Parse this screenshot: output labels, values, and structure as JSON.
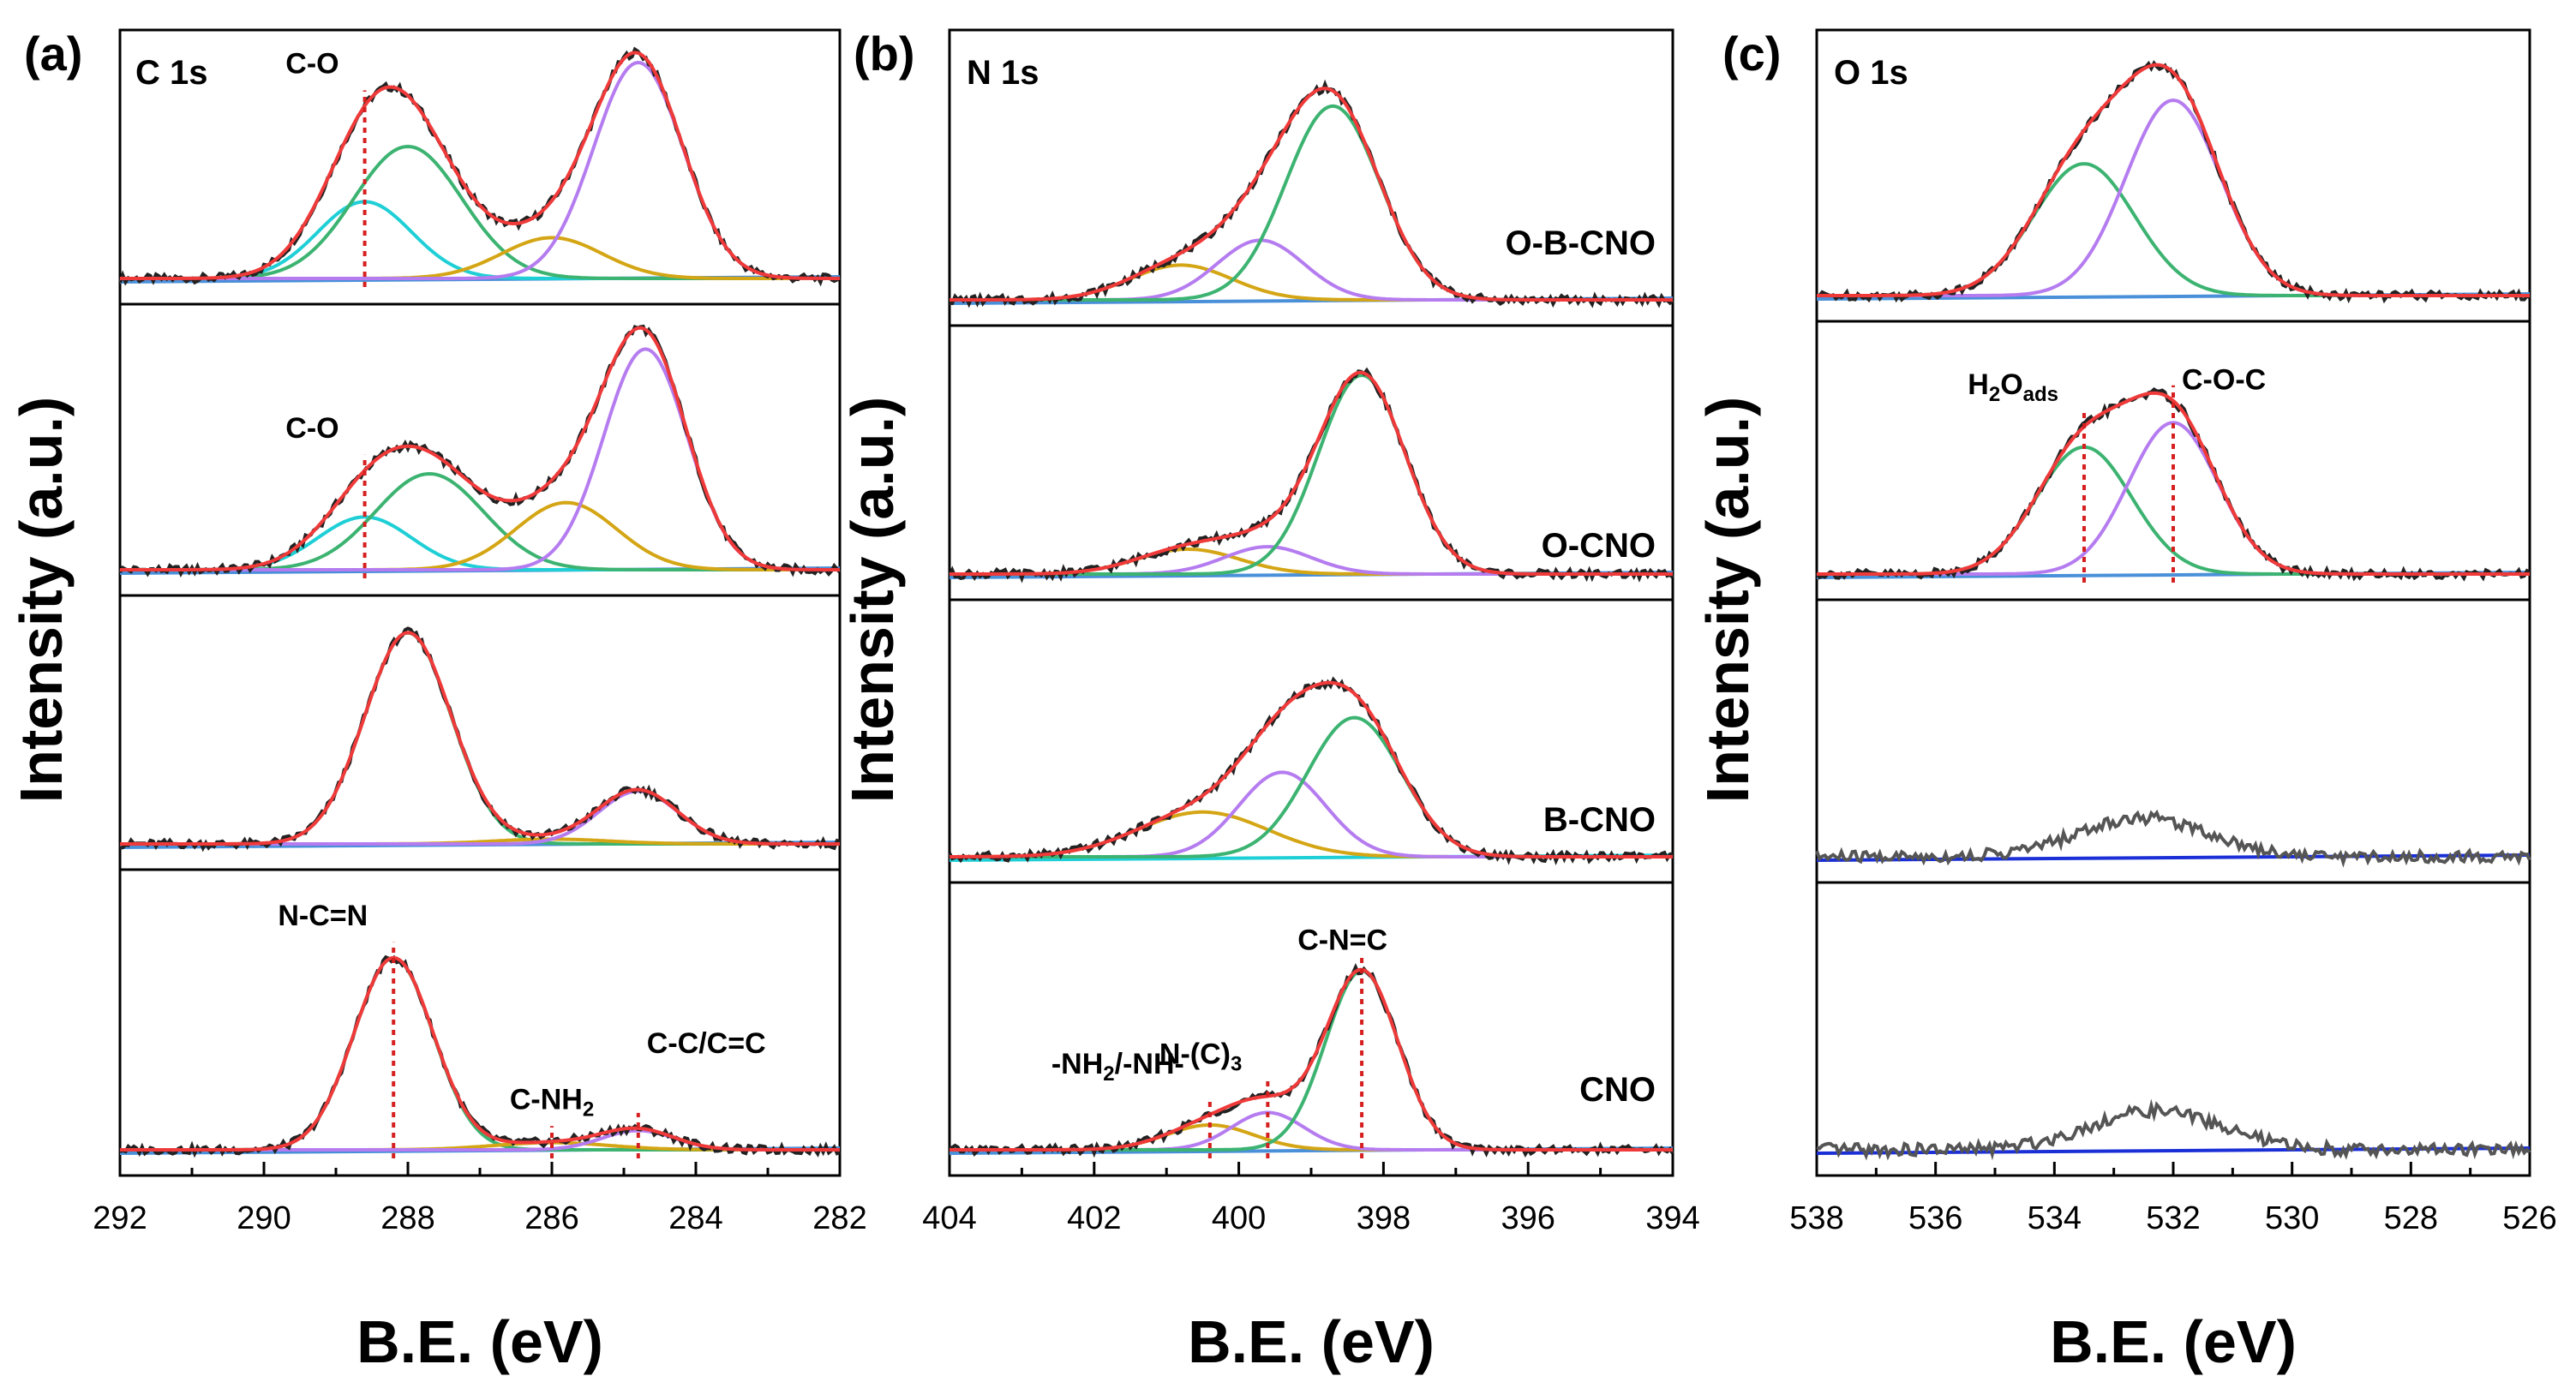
{
  "chart_data": [
    {
      "type": "line",
      "panel_label": "(a)",
      "core_level": "C 1s",
      "xlabel": "B.E. (eV)",
      "ylabel": "Intensity (a.u.)",
      "xlim": [
        292,
        282
      ],
      "x_ticks": [
        292,
        290,
        288,
        286,
        284,
        282
      ],
      "stacks": [
        {
          "sample": "",
          "peaks": [
            {
              "center": 288.6,
              "height": 0.32,
              "width": 0.65,
              "color": "#1fcfd6"
            },
            {
              "center": 288.0,
              "height": 0.55,
              "width": 0.75,
              "color": "#3cb371"
            },
            {
              "center": 286.0,
              "height": 0.17,
              "width": 0.7,
              "color": "#d4a514"
            },
            {
              "center": 284.8,
              "height": 0.9,
              "width": 0.62,
              "color": "#b57cf0"
            }
          ],
          "annotations": [
            {
              "text": "C-O",
              "x": 288.6
            }
          ]
        },
        {
          "sample": "",
          "peaks": [
            {
              "center": 288.6,
              "height": 0.22,
              "width": 0.65,
              "color": "#1fcfd6"
            },
            {
              "center": 287.7,
              "height": 0.4,
              "width": 0.75,
              "color": "#3cb371"
            },
            {
              "center": 285.8,
              "height": 0.28,
              "width": 0.7,
              "color": "#d4a514"
            },
            {
              "center": 284.7,
              "height": 0.92,
              "width": 0.58,
              "color": "#b57cf0"
            }
          ],
          "annotations": [
            {
              "text": "C-O",
              "x": 288.6
            }
          ]
        },
        {
          "sample": "",
          "peaks": [
            {
              "center": 288.0,
              "height": 0.88,
              "width": 0.6,
              "color": "#3cb371"
            },
            {
              "center": 286.0,
              "height": 0.02,
              "width": 0.8,
              "color": "#d4a514"
            },
            {
              "center": 284.8,
              "height": 0.22,
              "width": 0.55,
              "color": "#b57cf0"
            }
          ],
          "annotations": []
        },
        {
          "sample": "",
          "peaks": [
            {
              "center": 288.2,
              "height": 0.8,
              "width": 0.55,
              "color": "#3cb371"
            },
            {
              "center": 286.0,
              "height": 0.03,
              "width": 0.8,
              "color": "#d4a514"
            },
            {
              "center": 284.8,
              "height": 0.08,
              "width": 0.5,
              "color": "#b57cf0"
            }
          ],
          "annotations": [
            {
              "text": "N-C=N",
              "x": 288.2
            },
            {
              "text": "C-NH",
              "sub": "2",
              "x": 286.0
            },
            {
              "text": "C-C/C=C",
              "x": 284.8
            }
          ]
        }
      ]
    },
    {
      "type": "line",
      "panel_label": "(b)",
      "core_level": "N 1s",
      "xlabel": "B.E. (eV)",
      "ylabel": "Intensity (a.u.)",
      "xlim": [
        404,
        394
      ],
      "x_ticks": [
        404,
        402,
        400,
        398,
        396,
        394
      ],
      "stacks": [
        {
          "sample": "O-B-CNO",
          "peaks": [
            {
              "center": 400.8,
              "height": 0.14,
              "width": 0.7,
              "color": "#d4a514"
            },
            {
              "center": 399.7,
              "height": 0.24,
              "width": 0.6,
              "color": "#b57cf0"
            },
            {
              "center": 398.7,
              "height": 0.78,
              "width": 0.65,
              "color": "#3cb371"
            }
          ],
          "annotations": []
        },
        {
          "sample": "O-CNO",
          "peaks": [
            {
              "center": 400.7,
              "height": 0.1,
              "width": 0.7,
              "color": "#d4a514"
            },
            {
              "center": 399.6,
              "height": 0.11,
              "width": 0.6,
              "color": "#b57cf0"
            },
            {
              "center": 398.3,
              "height": 0.8,
              "width": 0.6,
              "color": "#3cb371"
            }
          ],
          "annotations": []
        },
        {
          "sample": "B-CNO",
          "peaks": [
            {
              "center": 400.5,
              "height": 0.18,
              "width": 0.9,
              "color": "#d4a514"
            },
            {
              "center": 399.4,
              "height": 0.34,
              "width": 0.6,
              "color": "#b57cf0"
            },
            {
              "center": 398.4,
              "height": 0.56,
              "width": 0.65,
              "color": "#3cb371"
            }
          ],
          "annotations": []
        },
        {
          "sample": "CNO",
          "peaks": [
            {
              "center": 400.4,
              "height": 0.1,
              "width": 0.6,
              "color": "#d4a514"
            },
            {
              "center": 399.6,
              "height": 0.15,
              "width": 0.5,
              "color": "#b57cf0"
            },
            {
              "center": 398.3,
              "height": 0.72,
              "width": 0.5,
              "color": "#3cb371"
            }
          ],
          "annotations": [
            {
              "text": "C-N=C",
              "x": 398.3
            },
            {
              "text": "N-(C)",
              "sub": "3",
              "x": 399.6
            },
            {
              "text": "-NH",
              "sub": "2",
              "text2": "/-NH-",
              "x": 400.4
            }
          ]
        }
      ]
    },
    {
      "type": "line",
      "panel_label": "(c)",
      "core_level": "O 1s",
      "xlabel": "B.E. (eV)",
      "ylabel": "Intensity (a.u.)",
      "xlim": [
        538,
        526
      ],
      "x_ticks": [
        538,
        536,
        534,
        532,
        530,
        528,
        526
      ],
      "stacks": [
        {
          "sample": "",
          "peaks": [
            {
              "center": 533.5,
              "height": 0.54,
              "width": 0.85,
              "color": "#3cb371"
            },
            {
              "center": 532.0,
              "height": 0.8,
              "width": 0.8,
              "color": "#b57cf0"
            }
          ],
          "annotations": []
        },
        {
          "sample": "",
          "peaks": [
            {
              "center": 533.5,
              "height": 0.52,
              "width": 0.8,
              "color": "#3cb371"
            },
            {
              "center": 532.0,
              "height": 0.62,
              "width": 0.75,
              "color": "#b57cf0"
            }
          ],
          "annotations": [
            {
              "text": "H",
              "sub": "2",
              "text2": "O",
              "sub2": "ads",
              "x": 533.5
            },
            {
              "text": "C-O-C",
              "x": 532.0
            }
          ]
        },
        {
          "sample": "",
          "peaks": [
            {
              "center": 532.5,
              "height": 0.16,
              "width": 1.1,
              "color": "#555555"
            }
          ],
          "annotations": []
        },
        {
          "sample": "",
          "peaks": [
            {
              "center": 532.3,
              "height": 0.16,
              "width": 1.1,
              "color": "#555555"
            }
          ],
          "annotations": []
        }
      ]
    }
  ]
}
